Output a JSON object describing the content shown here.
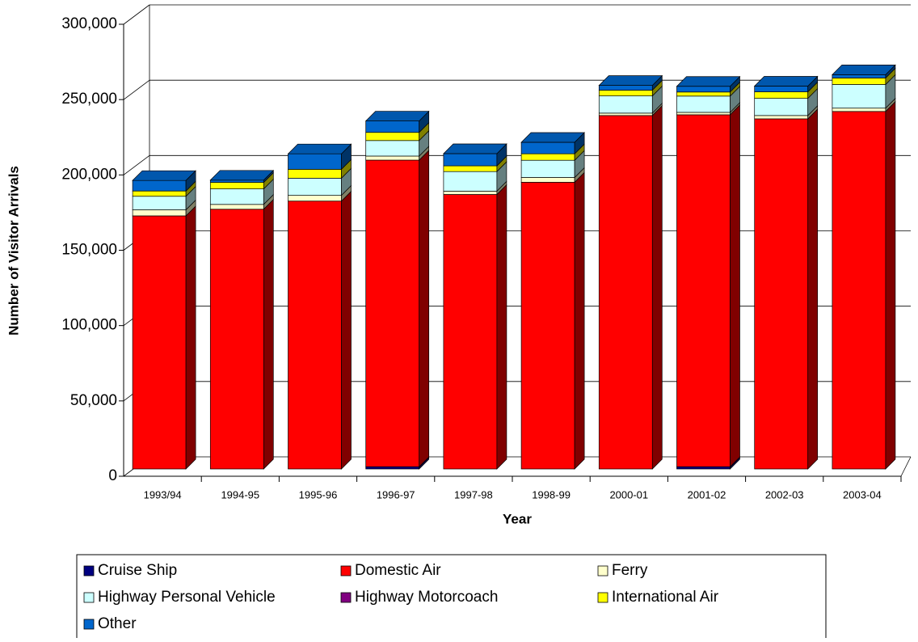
{
  "chart_data": {
    "type": "bar3d_stacked",
    "ylabel": "Number of Visitor Arrivals",
    "xlabel": "Year",
    "categories": [
      "1993/94",
      "1994-95",
      "1995-96",
      "1996-97",
      "1997-98",
      "1998-99",
      "2000-01",
      "2001-02",
      "2002-03",
      "2003-04"
    ],
    "series": [
      {
        "name": "Cruise Ship",
        "color": "#000080",
        "values": [
          0,
          0,
          0,
          1500,
          0,
          0,
          0,
          1500,
          0,
          0
        ]
      },
      {
        "name": "Domestic Air",
        "color": "#ff0000",
        "values": [
          168000,
          172400,
          177800,
          203500,
          182200,
          190300,
          234600,
          233600,
          232400,
          237300
        ]
      },
      {
        "name": "Ferry",
        "color": "#ffffcc",
        "values": [
          4000,
          3200,
          3800,
          2700,
          2200,
          3200,
          1600,
          1600,
          2200,
          2200
        ]
      },
      {
        "name": "Highway Personal Vehicle",
        "color": "#ccffff",
        "values": [
          9000,
          10300,
          11400,
          10300,
          13000,
          11400,
          11400,
          10800,
          11400,
          15700
        ]
      },
      {
        "name": "Highway Motorcoach",
        "color": "#800080",
        "values": [
          0,
          0,
          0,
          0,
          0,
          0,
          0,
          0,
          0,
          0
        ]
      },
      {
        "name": "International Air",
        "color": "#ffff00",
        "values": [
          3500,
          4300,
          5900,
          5400,
          3800,
          4300,
          3800,
          2700,
          4300,
          4300
        ]
      },
      {
        "name": "Other",
        "color": "#0066cc",
        "values": [
          7000,
          1500,
          10300,
          7600,
          8100,
          7600,
          3200,
          3800,
          3800,
          2200
        ]
      }
    ],
    "ylim": [
      0,
      300000
    ],
    "yticks": [
      0,
      {
        "value": 50000,
        "label": "50,000"
      },
      {
        "value": 100000,
        "label": "100,000"
      },
      {
        "value": 150000,
        "label": "150,000"
      },
      {
        "value": 200000,
        "label": "200,000"
      },
      {
        "value": 250000,
        "label": "250,000"
      },
      {
        "value": 300000,
        "label": "300,000"
      }
    ],
    "grid": true,
    "legend": "bottom"
  }
}
